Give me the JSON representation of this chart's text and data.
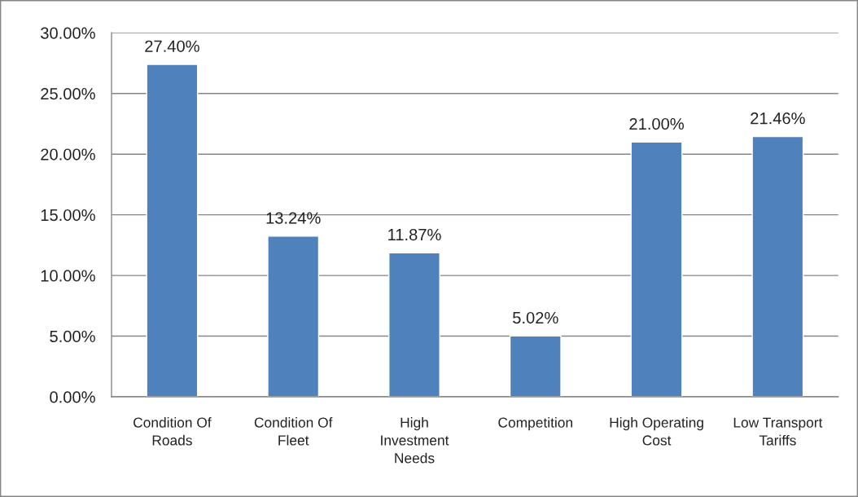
{
  "chart_data": {
    "type": "bar",
    "categories": [
      "Condition Of\nRoads",
      "Condition Of\nFleet",
      "High\nInvestment\nNeeds",
      "Competition",
      "High Operating\nCost",
      "Low Transport\nTariffs"
    ],
    "values": [
      27.4,
      13.24,
      11.87,
      5.02,
      21.0,
      21.46
    ],
    "value_labels": [
      "27.40%",
      "13.24%",
      "11.87%",
      "5.02%",
      "21.00%",
      "21.46%"
    ],
    "color": "#4f81bd",
    "ylim": [
      0,
      30
    ],
    "yticks": [
      {
        "value": 0,
        "label": "0.00%"
      },
      {
        "value": 5,
        "label": "5.00%"
      },
      {
        "value": 10,
        "label": "10.00%"
      },
      {
        "value": 15,
        "label": "15.00%"
      },
      {
        "value": 20,
        "label": "20.00%"
      },
      {
        "value": 25,
        "label": "25.00%"
      },
      {
        "value": 30,
        "label": "30.00%"
      }
    ],
    "grid": "y"
  }
}
